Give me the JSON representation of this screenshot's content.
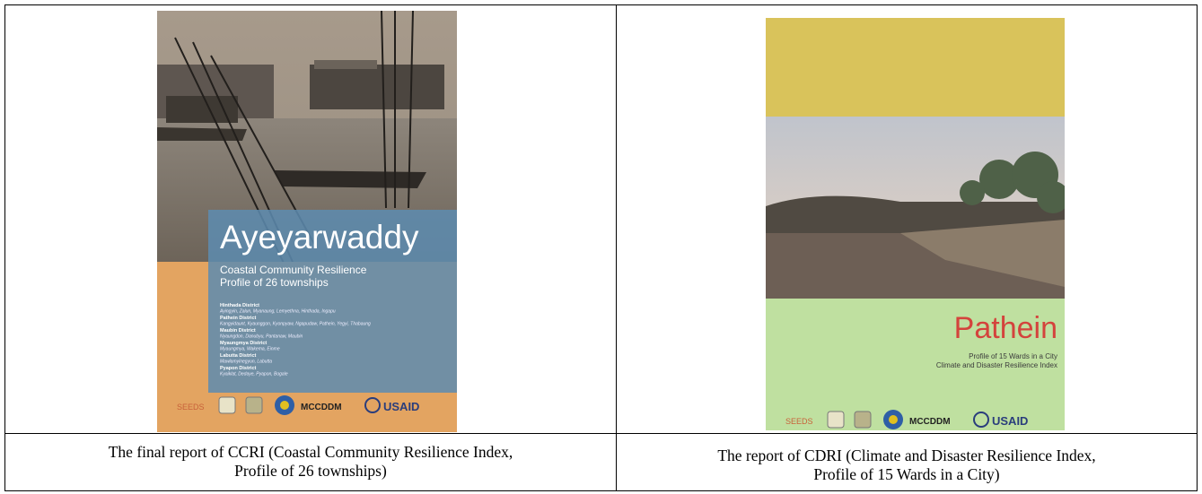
{
  "left": {
    "cover": {
      "title": "Ayeyarwaddy",
      "subtitle": [
        "Coastal Community Resilience",
        "Profile of 26 townships"
      ],
      "districts": [
        {
          "name": "Hinthada District",
          "townships": "Ayingyin, Zalun, Myanaung, Lemyethna, Hinthada, Ingapu"
        },
        {
          "name": "Pathein District",
          "townships": "Kangyidaunt, Kyaunggon, Kyonpyaw, Ngapudaw, Pathein, Yegyi, Thabaung"
        },
        {
          "name": "Maubin District",
          "townships": "Nyaungdon, Danubyu, Pantanaw, Maubin"
        },
        {
          "name": "Myaungmya District",
          "townships": "Myaungmya, Wakema, Einme"
        },
        {
          "name": "Labutta District",
          "townships": "Mawlamyinegyun, Labutta"
        },
        {
          "name": "Pyapon District",
          "townships": "Kyaiklat, Dedaye, Pyapon, Bogale"
        }
      ],
      "logos": [
        "SEEDS",
        "MCCDDM",
        "USAID"
      ]
    },
    "caption": [
      "The final report of CCRI (Coastal Community Resilience Index,",
      "Profile of 26 townships)"
    ]
  },
  "right": {
    "cover": {
      "title": "Pathein",
      "subtitle": [
        "Profile of 15 Wards in a City",
        "Climate and Disaster Resilience Index"
      ],
      "logos": [
        "SEEDS",
        "MCCDDM",
        "USAID"
      ]
    },
    "caption": [
      "The report of CDRI (Climate and Disaster Resilience Index,",
      "Profile of 15 Wards in a City)"
    ]
  }
}
